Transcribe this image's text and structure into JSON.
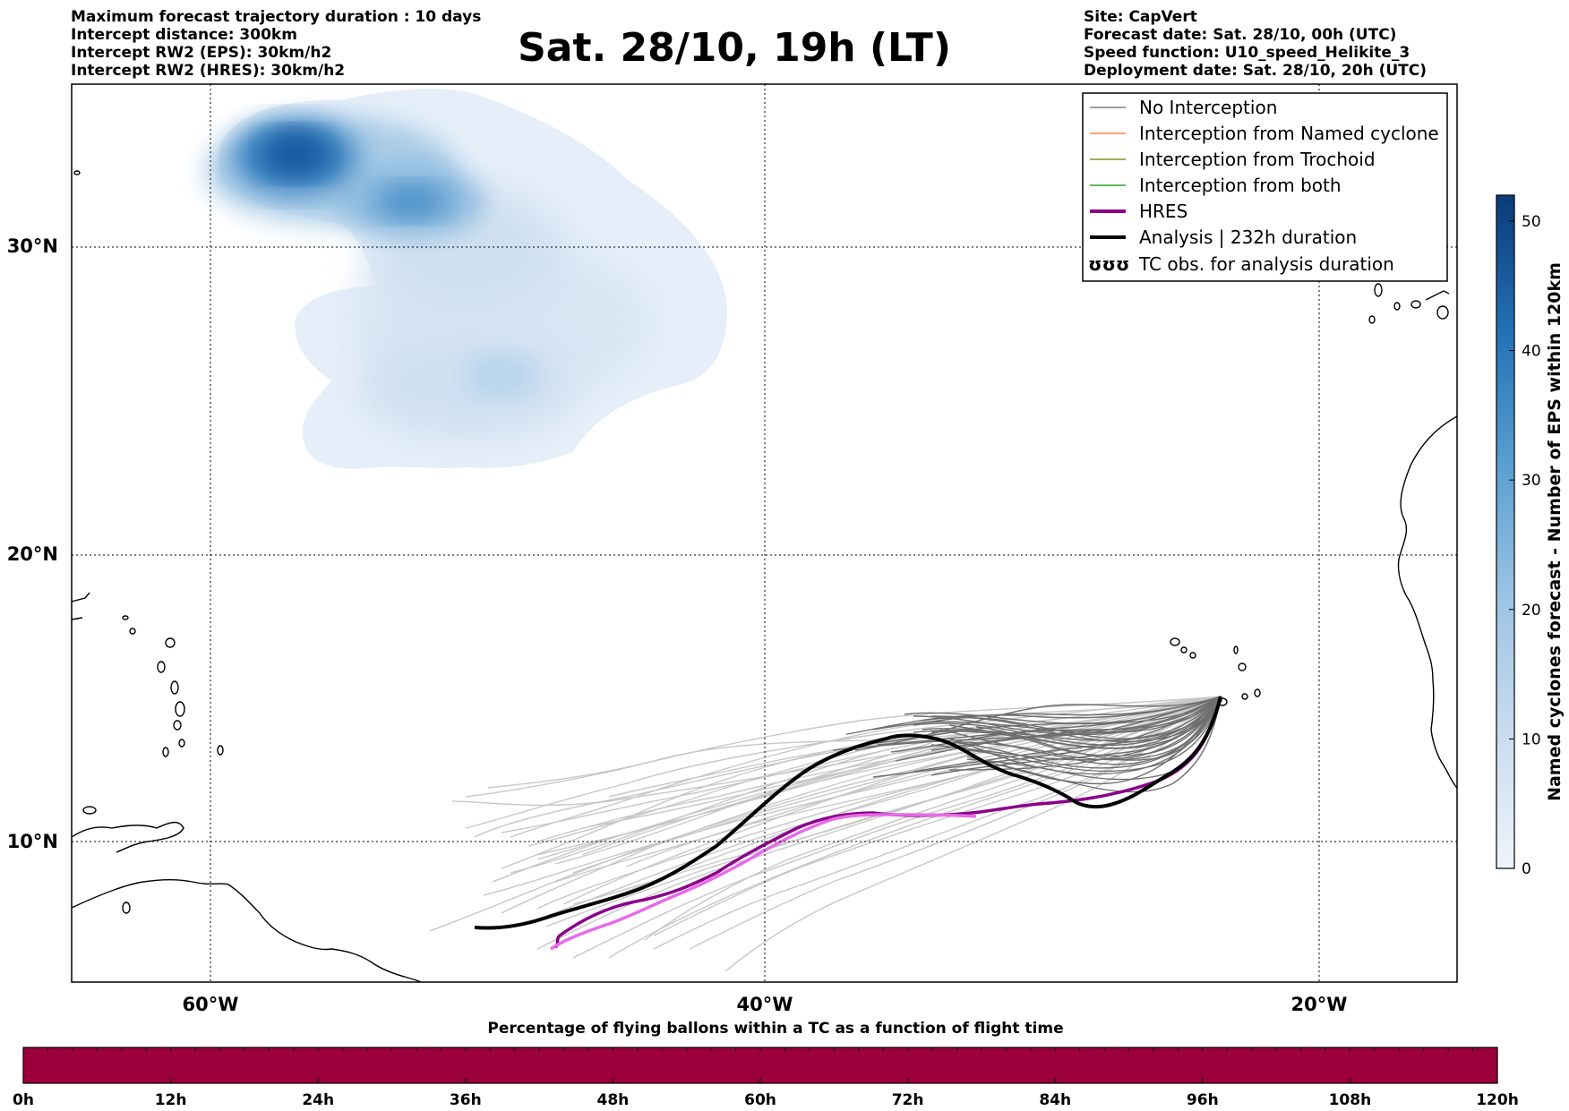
{
  "header_left": [
    "Maximum forecast trajectory duration : 10 days",
    "Intercept distance: 300km",
    "Intercept RW2 (EPS):  30km/h2",
    "Intercept RW2 (HRES): 30km/h2"
  ],
  "title": "Sat. 28/10, 19h (LT)",
  "header_right": [
    "Site: CapVert",
    "Forecast date: Sat. 28/10, 00h (UTC)",
    "Speed function: U10_speed_Helikite_3",
    "Deployment date: Sat. 28/10, 20h (UTC)"
  ],
  "map": {
    "lat_labels": [
      "30°N",
      "20°N",
      "10°N"
    ],
    "lon_labels": [
      "60°W",
      "40°W",
      "20°W"
    ]
  },
  "legend": [
    {
      "label": "No Interception",
      "color": "#808080",
      "style": "thin"
    },
    {
      "label": "Interception from Named cyclone",
      "color": "#ff7f50",
      "style": "thin"
    },
    {
      "label": "Interception from Trochoid",
      "color": "#8b8b2a",
      "style": "thin"
    },
    {
      "label": "Interception from both",
      "color": "#2ca02c",
      "style": "thin"
    },
    {
      "label": "HRES",
      "color": "#8b008b",
      "style": "thick"
    },
    {
      "label": "Analysis | 232h duration",
      "color": "#000000",
      "style": "thick"
    },
    {
      "label": "TC obs. for analysis duration",
      "color": "#000000",
      "style": "symbol",
      "symbol_text": "ʊʊʊ"
    }
  ],
  "colorbar": {
    "title": "Named cyclones forecast - Number of EPS within 120km",
    "ticks": [
      "0",
      "10",
      "20",
      "30",
      "40",
      "50"
    ],
    "min": 0,
    "max": 52,
    "color_low": "#eef4fb",
    "color_high": "#0b3b78"
  },
  "percentage_bar": {
    "title": "Percentage of flying ballons within a TC as a function of flight time",
    "ticks": [
      "0h",
      "12h",
      "24h",
      "36h",
      "48h",
      "60h",
      "72h",
      "84h",
      "96h",
      "108h",
      "120h"
    ],
    "color": "#9b003c"
  }
}
